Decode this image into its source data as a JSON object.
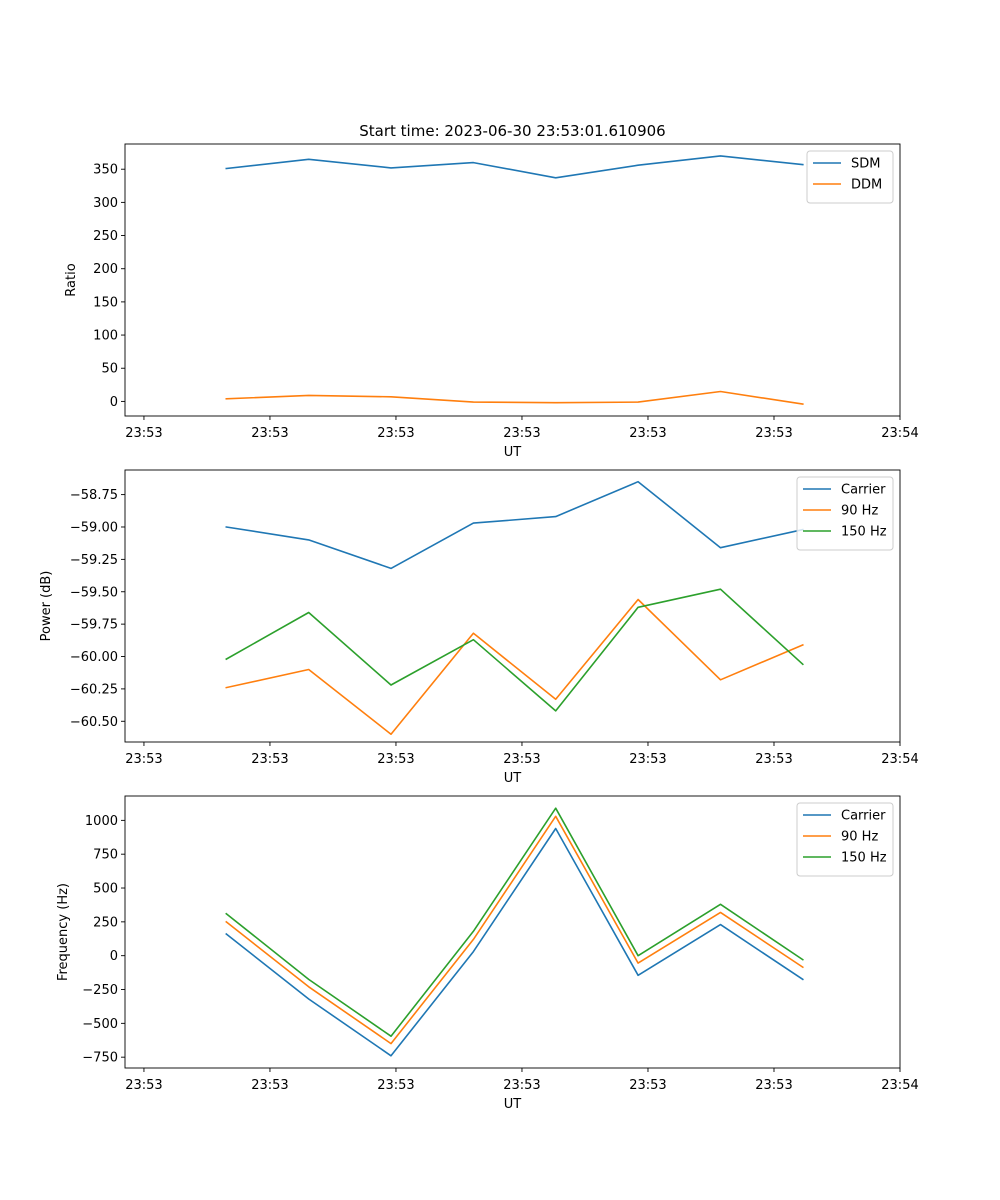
{
  "chart_data": [
    {
      "type": "line",
      "title": "Start time: 2023-06-30 23:53:01.610906",
      "xlabel": "UT",
      "ylabel": "Ratio",
      "x": [
        1,
        2,
        3,
        4,
        5,
        6,
        7,
        8
      ],
      "x_tick_values": [
        0,
        1.53,
        3.06,
        4.59,
        6.12,
        7.65,
        9.18
      ],
      "x_tick_labels": [
        "23:53",
        "23:53",
        "23:53",
        "23:53",
        "23:53",
        "23:53",
        "23:54"
      ],
      "xlim": [
        -0.23,
        9.18
      ],
      "ylim": [
        -22,
        388
      ],
      "y_ticks": [
        0,
        50,
        100,
        150,
        200,
        250,
        300,
        350
      ],
      "legend_position": "upper right",
      "series": [
        {
          "name": "SDM",
          "color": "#1f77b4",
          "values": [
            351,
            365,
            352,
            360,
            337,
            356,
            370,
            357
          ]
        },
        {
          "name": "DDM",
          "color": "#ff7f0e",
          "values": [
            4,
            9,
            7,
            -1,
            -2,
            -1,
            15,
            -4
          ]
        }
      ]
    },
    {
      "type": "line",
      "title": "",
      "xlabel": "UT",
      "ylabel": "Power (dB)",
      "x": [
        1,
        2,
        3,
        4,
        5,
        6,
        7,
        8
      ],
      "x_tick_values": [
        0,
        1.53,
        3.06,
        4.59,
        6.12,
        7.65,
        9.18
      ],
      "x_tick_labels": [
        "23:53",
        "23:53",
        "23:53",
        "23:53",
        "23:53",
        "23:53",
        "23:54"
      ],
      "xlim": [
        -0.23,
        9.18
      ],
      "ylim": [
        -60.66,
        -58.56
      ],
      "y_ticks": [
        -60.5,
        -60.25,
        -60.0,
        -59.75,
        -59.5,
        -59.25,
        -59.0,
        -58.75
      ],
      "y_tick_labels": [
        "−60.50",
        "−60.25",
        "−60.00",
        "−59.75",
        "−59.50",
        "−59.25",
        "−59.00",
        "−58.75"
      ],
      "legend_position": "upper right",
      "series": [
        {
          "name": "Carrier",
          "color": "#1f77b4",
          "values": [
            -59.0,
            -59.1,
            -59.32,
            -58.97,
            -58.92,
            -58.65,
            -59.16,
            -59.02
          ]
        },
        {
          "name": "90 Hz",
          "color": "#ff7f0e",
          "values": [
            -60.24,
            -60.1,
            -60.6,
            -59.82,
            -60.33,
            -59.56,
            -60.18,
            -59.91
          ]
        },
        {
          "name": "150 Hz",
          "color": "#2ca02c",
          "values": [
            -60.02,
            -59.66,
            -60.22,
            -59.87,
            -60.42,
            -59.62,
            -59.48,
            -60.06
          ]
        }
      ]
    },
    {
      "type": "line",
      "title": "",
      "xlabel": "UT",
      "ylabel": "Frequency (Hz)",
      "x": [
        1,
        2,
        3,
        4,
        5,
        6,
        7,
        8
      ],
      "x_tick_values": [
        0,
        1.53,
        3.06,
        4.59,
        6.12,
        7.65,
        9.18
      ],
      "x_tick_labels": [
        "23:53",
        "23:53",
        "23:53",
        "23:53",
        "23:53",
        "23:53",
        "23:54"
      ],
      "xlim": [
        -0.23,
        9.18
      ],
      "ylim": [
        -830,
        1180
      ],
      "y_ticks": [
        -750,
        -500,
        -250,
        0,
        250,
        500,
        750,
        1000
      ],
      "y_tick_labels": [
        "−750",
        "−500",
        "−250",
        "0",
        "250",
        "500",
        "750",
        "1000"
      ],
      "legend_position": "upper right",
      "series": [
        {
          "name": "Carrier",
          "color": "#1f77b4",
          "values": [
            160,
            -320,
            -740,
            30,
            940,
            -145,
            230,
            -175
          ]
        },
        {
          "name": "90 Hz",
          "color": "#ff7f0e",
          "values": [
            250,
            -230,
            -650,
            120,
            1030,
            -55,
            320,
            -85
          ]
        },
        {
          "name": "150 Hz",
          "color": "#2ca02c",
          "values": [
            310,
            -175,
            -595,
            180,
            1090,
            0,
            380,
            -30
          ]
        }
      ]
    }
  ]
}
